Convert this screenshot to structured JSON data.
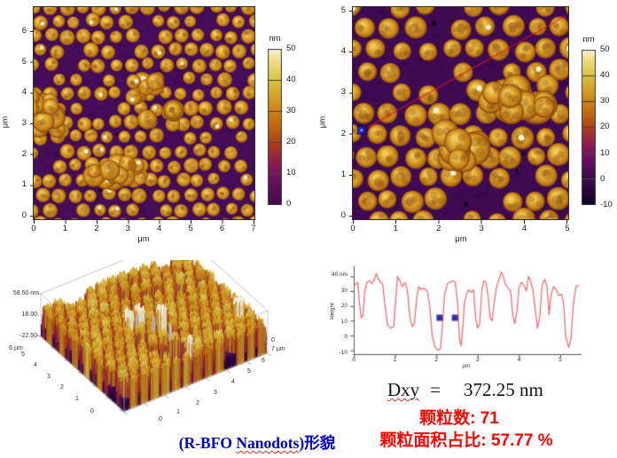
{
  "figure": {
    "caption": {
      "prefix": "(R-BFO ",
      "underlined": "Nanodots",
      "suffix": ")形貌",
      "color": "#0000cc"
    },
    "dxy": {
      "label": "Dxy",
      "eq": "=",
      "value": "372.25 nm"
    },
    "stats": {
      "line1_label": "颗粒数:",
      "line1_value": "71",
      "line2_label": "颗粒面积占比:",
      "line2_value": "57.77 %",
      "color": "#fb0500"
    }
  },
  "panels": {
    "afm_left": {
      "x_ticks": [
        "0",
        "1",
        "2",
        "3",
        "4",
        "5",
        "6",
        "7"
      ],
      "y_ticks": [
        "6",
        "5",
        "4",
        "3",
        "2",
        "1",
        "0"
      ],
      "x_label": "μm",
      "y_label": "μm",
      "colorbar": {
        "title": "nm",
        "ticks": [
          "50",
          "40",
          "30",
          "20",
          "10",
          "0"
        ]
      }
    },
    "afm_right": {
      "x_ticks": [
        "0",
        "1",
        "2",
        "3",
        "4",
        "5"
      ],
      "y_ticks": [
        "5",
        "4",
        "3",
        "2",
        "1",
        "0"
      ],
      "x_label": "μm",
      "y_label": "μm",
      "colorbar": {
        "title": "nm",
        "ticks": [
          "50",
          "40",
          "30",
          "20",
          "10",
          "0",
          "-10"
        ]
      }
    },
    "surface_3d": {
      "z_ticks": [
        "58.50 nm",
        "18.00",
        "-22.50"
      ],
      "left_axis_ticks": [
        "6 μm",
        "5",
        "4",
        "3",
        "2",
        "1",
        "0"
      ],
      "right_axis_ticks": [
        "0",
        "7 μm",
        "6",
        "5",
        "4",
        "3",
        "2",
        "1",
        "0"
      ]
    },
    "profile": {
      "y_label": "Height",
      "y_ticks": [
        "40 nm",
        "30",
        "20",
        "10",
        "0",
        "-10"
      ],
      "x_ticks": [
        "0",
        "1",
        "2",
        "3",
        "4",
        "5"
      ],
      "x_label": "μm"
    }
  },
  "chart_data": [
    {
      "id": "afm_2d_left",
      "type": "heatmap",
      "content": "AFM topography of hexagonally packed BFO nanodot array",
      "x_range_um": [
        0,
        7
      ],
      "y_range_um": [
        0,
        6.9
      ],
      "x_label": "μm",
      "y_label": "μm",
      "colorbar": {
        "label": "nm",
        "range": [
          0,
          50
        ],
        "ticks": [
          50,
          40,
          30,
          20,
          10,
          0
        ]
      }
    },
    {
      "id": "afm_2d_right",
      "type": "heatmap",
      "content": "AFM topography of BFO nanodot array with section line",
      "x_range_um": [
        0,
        5
      ],
      "y_range_um": [
        0,
        5
      ],
      "x_label": "μm",
      "y_label": "μm",
      "colorbar": {
        "label": "nm",
        "range": [
          -10,
          50
        ],
        "ticks": [
          50,
          40,
          30,
          20,
          10,
          0,
          -10
        ]
      },
      "profile_line": {
        "x1": 0.35,
        "y1": 2.17,
        "x2": 4.94,
        "y2": 4.79,
        "color": "#ee1010"
      },
      "start_marker": {
        "x": 0.2,
        "y": 2.1,
        "color": "#2222cc"
      }
    },
    {
      "id": "surface_3d",
      "type": "heatmap",
      "projection": "3d",
      "content": "3D rendering of nanodot topography",
      "x_range_um": [
        0,
        7
      ],
      "y_range_um": [
        0,
        6
      ],
      "z_range_nm": [
        -22.5,
        58.5
      ],
      "z_ticks_nm": [
        58.5,
        18.0,
        -22.5
      ]
    },
    {
      "id": "height_profile",
      "type": "line",
      "xlabel": "μm",
      "ylabel": "Height",
      "xlim": [
        0,
        5.45
      ],
      "ylim": [
        -12,
        45
      ],
      "ytick_values_nm": [
        40,
        30,
        20,
        10,
        0,
        -10
      ],
      "x": [
        0,
        0.05,
        0.1,
        0.14,
        0.18,
        0.22,
        0.27,
        0.32,
        0.38,
        0.44,
        0.5,
        0.55,
        0.6,
        0.65,
        0.7,
        0.75,
        0.82,
        0.9,
        0.97,
        1.02,
        1.06,
        1.12,
        1.18,
        1.24,
        1.3,
        1.36,
        1.42,
        1.47,
        1.52,
        1.57,
        1.63,
        1.7,
        1.78,
        1.84,
        1.9,
        1.97,
        2.03,
        2.1,
        2.15,
        2.2,
        2.27,
        2.33,
        2.4,
        2.46,
        2.52,
        2.56,
        2.6,
        2.64,
        2.68,
        2.73,
        2.78,
        2.84,
        2.9,
        2.95,
        3.0,
        3.05,
        3.1,
        3.15,
        3.2,
        3.26,
        3.3,
        3.35,
        3.4,
        3.46,
        3.52,
        3.57,
        3.62,
        3.68,
        3.74,
        3.8,
        3.85,
        3.9,
        3.95,
        4.0,
        4.06,
        4.12,
        4.18,
        4.23,
        4.28,
        4.34,
        4.4,
        4.45,
        4.5,
        4.56,
        4.62,
        4.68,
        4.73,
        4.78,
        4.84,
        4.9,
        4.97,
        5.03,
        5.08,
        5.13,
        5.2,
        5.26,
        5.32,
        5.38,
        5.45
      ],
      "y": [
        33,
        35,
        36,
        22,
        12,
        13,
        30,
        36,
        37,
        35,
        38,
        42,
        38,
        36,
        35,
        22,
        7,
        5,
        6,
        25,
        40,
        37,
        33,
        36,
        31,
        12,
        6,
        8,
        24,
        33,
        31,
        32,
        30,
        20,
        0,
        -8,
        -10,
        -9,
        8,
        28,
        35,
        36,
        37,
        36,
        20,
        -2,
        -7,
        5,
        22,
        28,
        31,
        29,
        31,
        12,
        5,
        8,
        30,
        37,
        36,
        25,
        12,
        10,
        22,
        33,
        38,
        43,
        40,
        34,
        32,
        30,
        14,
        8,
        16,
        32,
        36,
        34,
        30,
        40,
        37,
        31,
        16,
        5,
        12,
        34,
        38,
        33,
        14,
        28,
        33,
        31,
        27,
        28,
        22,
        0,
        -8,
        -2,
        22,
        33,
        34
      ],
      "markers": [
        {
          "x": 2.08,
          "y": 12
        },
        {
          "x": 2.45,
          "y": 12
        }
      ],
      "measurement": {
        "label": "Dxy",
        "value_nm": 372.25
      },
      "summary": {
        "particle_count": 71,
        "particle_area_fraction_pct": 57.77
      }
    }
  ],
  "style": {
    "lut": [
      [
        -14,
        "#05010d"
      ],
      [
        -8,
        "#17042a"
      ],
      [
        0,
        "#3c0a50"
      ],
      [
        8,
        "#6b1163"
      ],
      [
        14,
        "#8f1d4e"
      ],
      [
        20,
        "#ad421a"
      ],
      [
        27,
        "#c4720f"
      ],
      [
        33,
        "#d3941f"
      ],
      [
        40,
        "#ddc23e"
      ],
      [
        46,
        "#eedd85"
      ],
      [
        51,
        "#fbf7dd"
      ]
    ],
    "background_purple": "#450c58",
    "background_purple_right": "#3f0a52",
    "dot_gold": "#d9a62e",
    "profile_line": "#ee6f6f",
    "marker_blue": "#2222cc",
    "overlay_line_red": "#ee1010",
    "axis_text": "#1a1a1a"
  }
}
